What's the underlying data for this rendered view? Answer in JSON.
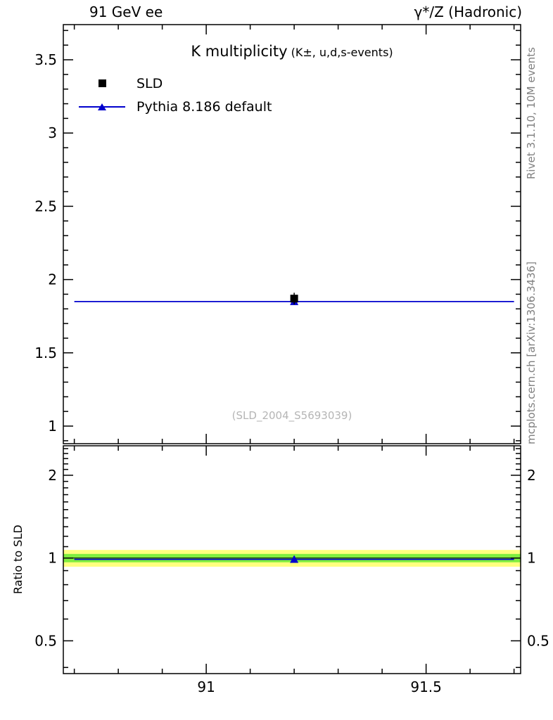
{
  "header": {
    "left": "91 GeV ee",
    "right": "γ*/Z (Hadronic)"
  },
  "title": {
    "main": "K multiplicity",
    "sub": " (K±, u,d,s-events)"
  },
  "legend": [
    {
      "label": "SLD",
      "marker": "black-square"
    },
    {
      "label": "Pythia 8.186 default",
      "marker": "blue-line-triangle"
    }
  ],
  "side_captions": {
    "right_top": "Rivet 3.1.10,  10M events",
    "right_bottom": "mcplots.cern.ch [arXiv:1306.3436]"
  },
  "colors": {
    "mc_blue": "#0000cd",
    "band_yellow": "#ffff00",
    "band_green": "#00dd00",
    "frame": "#000000",
    "gray_text": "#808080",
    "watermark_gray": "#b5b5b5"
  },
  "chart_data": {
    "type": "line",
    "title": "K multiplicity (K±, u,d,s-events)",
    "watermark": "(SLD_2004_S5693039)",
    "ratio_ylabel": "Ratio to SLD",
    "xlim": [
      90.675,
      91.715
    ],
    "xticks": [
      91,
      91.5
    ],
    "xtick_labels": [
      "91",
      "91.5"
    ],
    "xminor": [
      90.7,
      90.8,
      90.9,
      91.1,
      91.2,
      91.3,
      91.4,
      91.6,
      91.7
    ],
    "main": {
      "yscale": "linear",
      "ylim": [
        0.88,
        3.74
      ],
      "yticks": [
        1,
        1.5,
        2,
        2.5,
        3,
        3.5
      ],
      "ytick_labels": [
        "1",
        "1.5",
        "2",
        "2.5",
        "3",
        "3.5"
      ],
      "yminor": [
        0.9,
        1.1,
        1.2,
        1.3,
        1.4,
        1.6,
        1.7,
        1.8,
        1.9,
        2.1,
        2.2,
        2.3,
        2.4,
        2.6,
        2.7,
        2.8,
        2.9,
        3.1,
        3.2,
        3.3,
        3.4,
        3.6,
        3.7
      ],
      "series": [
        {
          "name": "SLD",
          "type": "point",
          "x": 91.2,
          "y": 1.87,
          "yerr": 0.04,
          "color": "#000000",
          "marker": "square"
        },
        {
          "name": "Pythia 8.186 default",
          "type": "hline",
          "x0": 90.7,
          "x1": 91.7,
          "y": 1.85,
          "marker_x": 91.2,
          "color": "#0000cd",
          "marker": "triangle"
        }
      ]
    },
    "ratio": {
      "yscale": "log",
      "ylim": [
        0.38,
        2.56
      ],
      "yticks": [
        0.5,
        1,
        2
      ],
      "ytick_labels": [
        "0.5",
        "1",
        "2"
      ],
      "yminor": [
        0.4,
        0.6,
        0.7,
        0.8,
        0.9,
        1.1,
        1.2,
        1.3,
        1.4,
        1.5,
        1.6,
        1.7,
        1.8,
        1.9,
        2.1,
        2.2,
        2.3,
        2.4,
        2.5
      ],
      "reference_line": 1.0,
      "bands": [
        {
          "name": "ratio-band-yellow",
          "lo": 0.93,
          "hi": 1.07,
          "color": "#ffff00",
          "opacity": 0.5
        },
        {
          "name": "ratio-band-green",
          "lo": 0.965,
          "hi": 1.035,
          "color": "#00dd00",
          "opacity": 0.5
        }
      ],
      "series": [
        {
          "name": "Pythia/SLD",
          "type": "hline",
          "x0": 90.7,
          "x1": 91.7,
          "y": 0.989,
          "marker_x": 91.2,
          "color": "#0000cd",
          "marker": "triangle"
        }
      ]
    }
  }
}
